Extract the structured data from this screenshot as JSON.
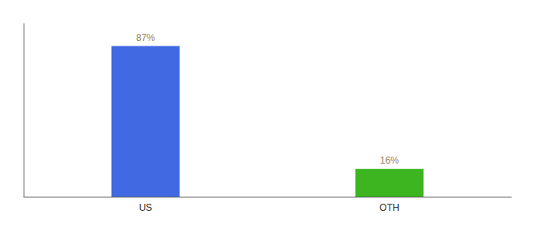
{
  "chart_data": {
    "type": "bar",
    "categories": [
      "US",
      "OTH"
    ],
    "values": [
      87,
      16
    ],
    "value_labels": [
      "87%",
      "16%"
    ],
    "colors": [
      "#4169e1",
      "#3cb521"
    ],
    "ylim": [
      0,
      100
    ],
    "tick_labels": "x",
    "data_labels": true,
    "grid": false
  }
}
